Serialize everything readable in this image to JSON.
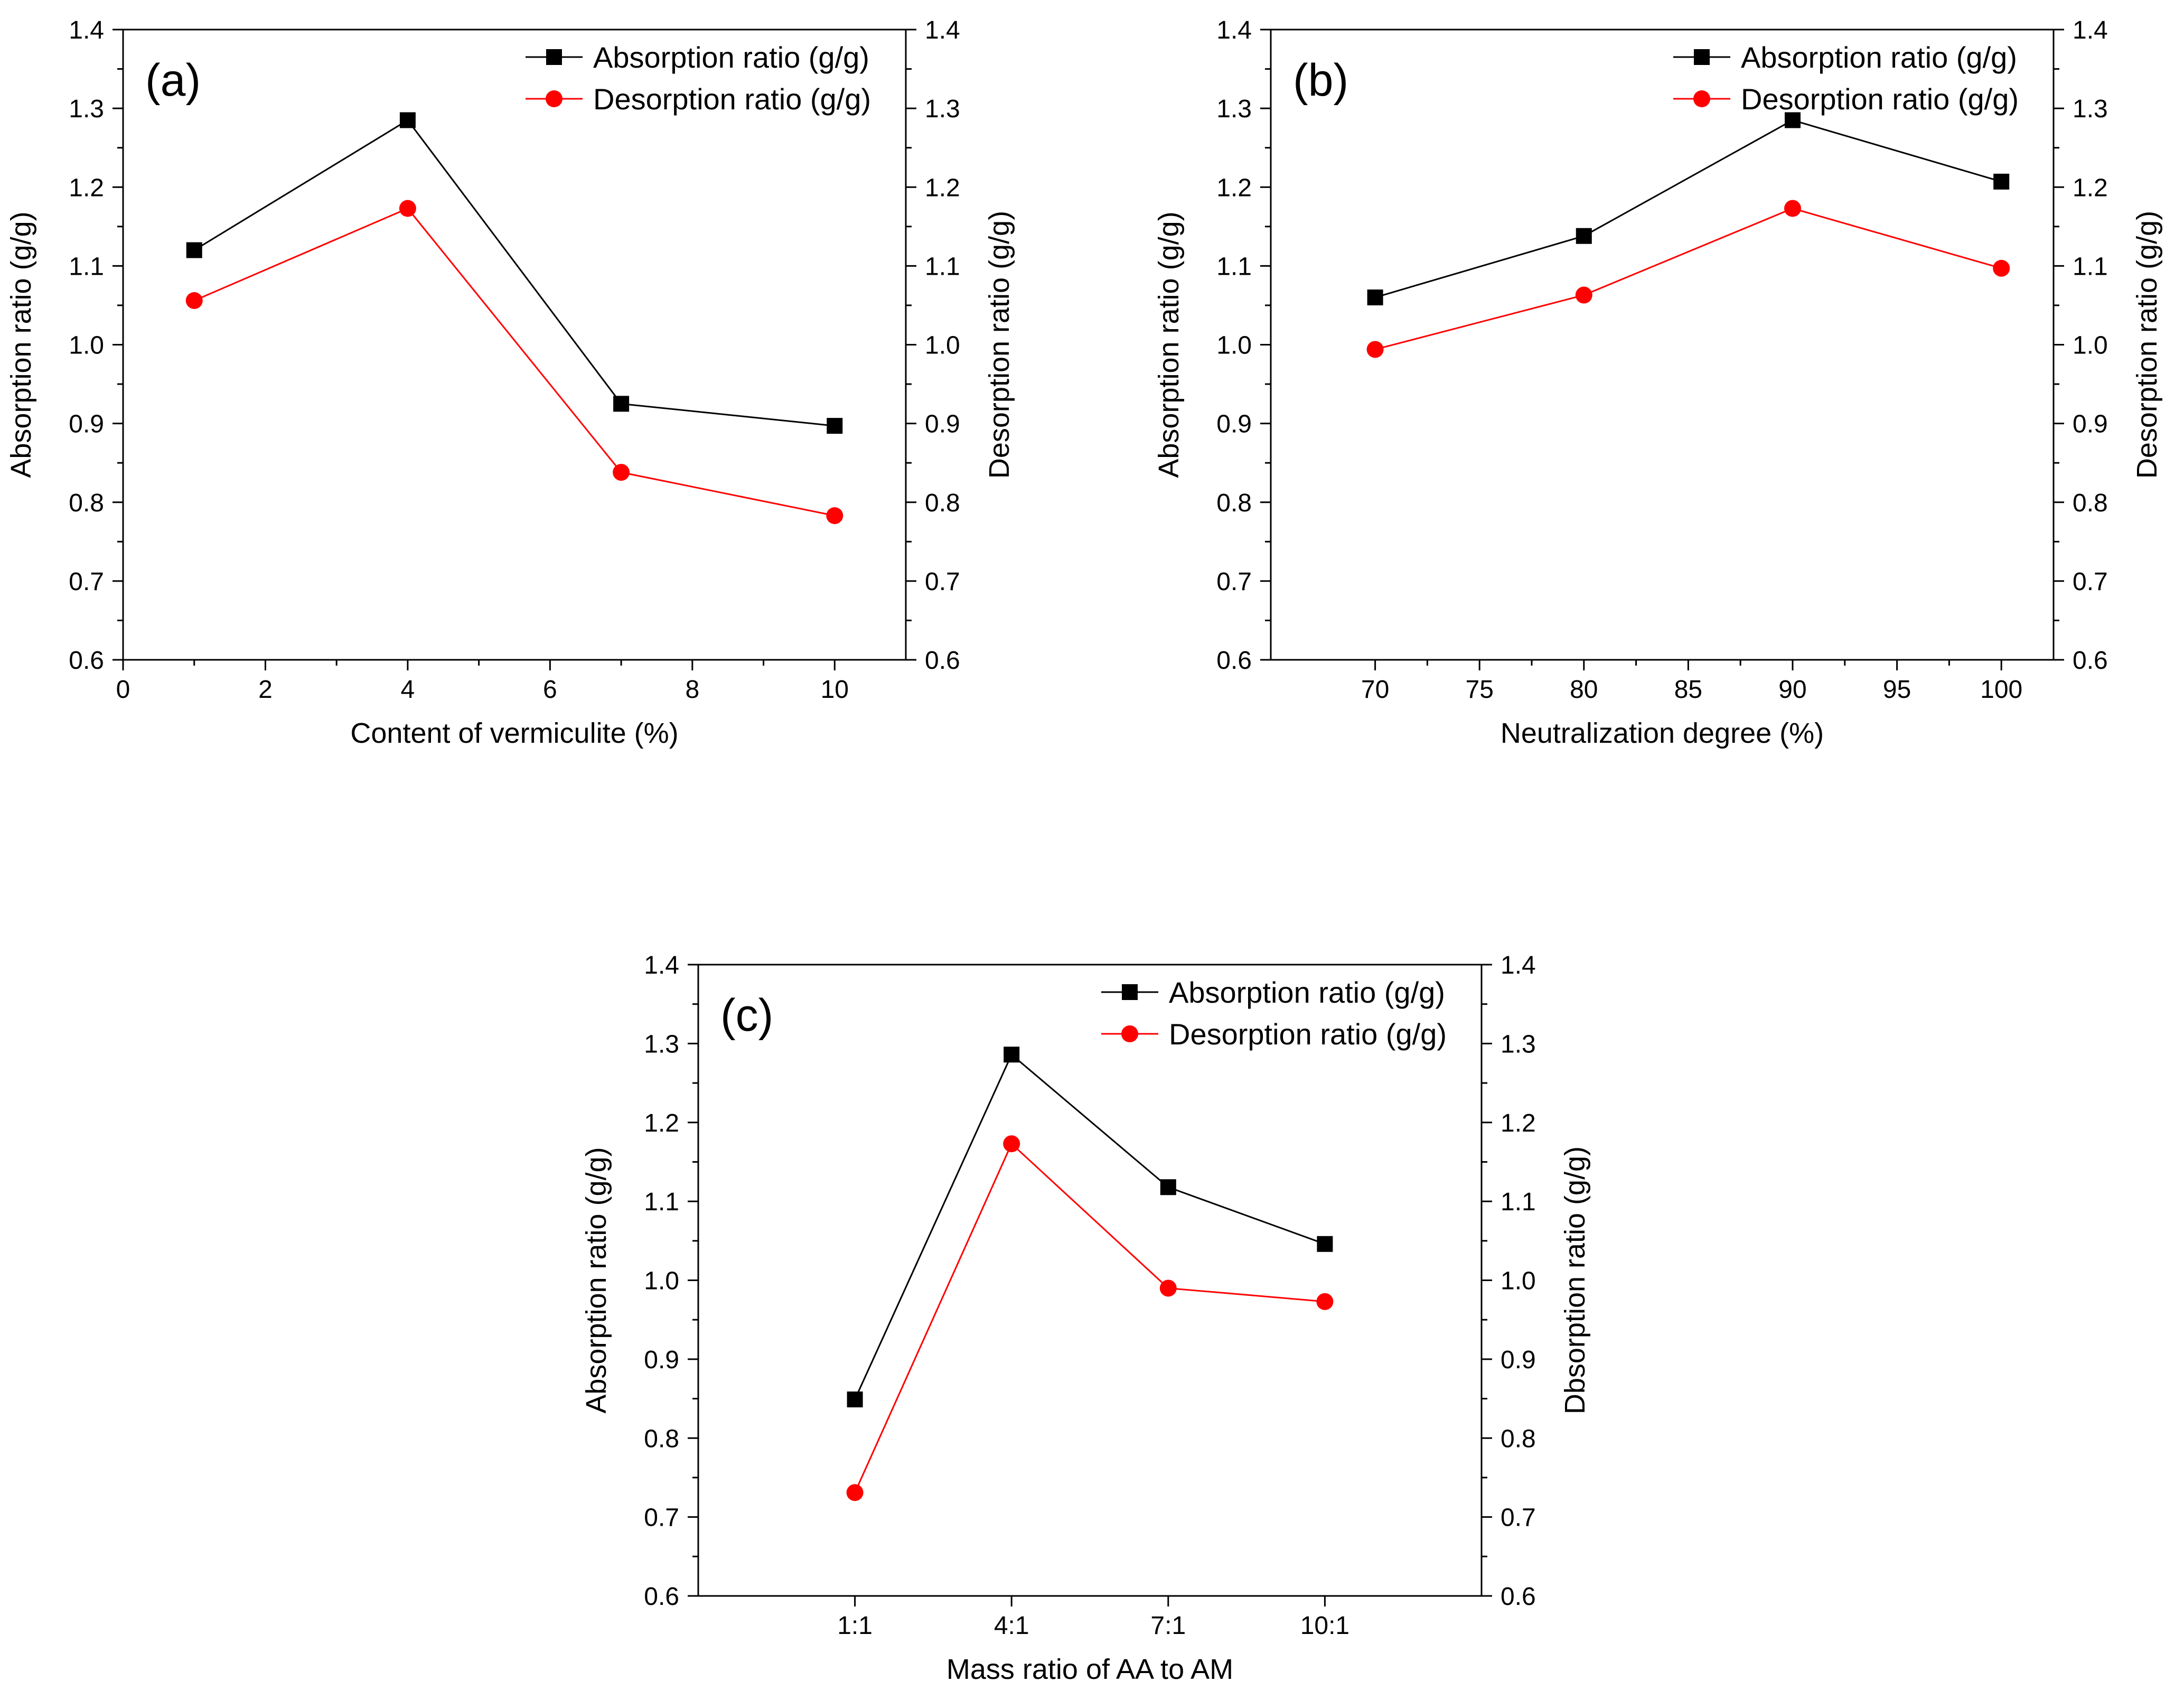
{
  "chart_data": [
    {
      "type": "line",
      "panel_label": "(a)",
      "xlabel": "Content of vermiculite (%)",
      "ylabel_left": "Absorption ratio (g/g)",
      "ylabel_right": "Desorption ratio (g/g)",
      "x_scale": "linear",
      "xlim": [
        0,
        11
      ],
      "xticks": [
        0,
        2,
        4,
        6,
        8,
        10
      ],
      "xtick_labels": [
        "0",
        "2",
        "4",
        "6",
        "8",
        "10"
      ],
      "ylim": [
        0.6,
        1.4
      ],
      "yticks": [
        0.6,
        0.7,
        0.8,
        0.9,
        1.0,
        1.1,
        1.2,
        1.3,
        1.4
      ],
      "ytick_labels": [
        "0.6",
        "0.7",
        "0.8",
        "0.9",
        "1.0",
        "1.1",
        "1.2",
        "1.3",
        "1.4"
      ],
      "x": [
        1,
        4,
        7,
        10
      ],
      "series": [
        {
          "name": "Absorption ratio (g/g)",
          "color": "#000000",
          "marker": "square",
          "values": [
            1.12,
            1.285,
            0.925,
            0.897
          ]
        },
        {
          "name": "Desorption ratio (g/g)",
          "color": "#ff0000",
          "marker": "circle",
          "values": [
            1.056,
            1.173,
            0.838,
            0.783
          ]
        }
      ],
      "legend": "top-right"
    },
    {
      "type": "line",
      "panel_label": "(b)",
      "xlabel": "Neutralization degree (%)",
      "ylabel_left": "Absorption ratio (g/g)",
      "ylabel_right": "Desorption ratio (g/g)",
      "x_scale": "linear",
      "xlim": [
        65,
        102.5
      ],
      "xticks": [
        70,
        75,
        80,
        85,
        90,
        95,
        100
      ],
      "xtick_labels": [
        "70",
        "75",
        "80",
        "85",
        "90",
        "95",
        "100"
      ],
      "ylim": [
        0.6,
        1.4
      ],
      "yticks": [
        0.6,
        0.7,
        0.8,
        0.9,
        1.0,
        1.1,
        1.2,
        1.3,
        1.4
      ],
      "ytick_labels": [
        "0.6",
        "0.7",
        "0.8",
        "0.9",
        "1.0",
        "1.1",
        "1.2",
        "1.3",
        "1.4"
      ],
      "x": [
        70,
        80,
        90,
        100
      ],
      "series": [
        {
          "name": "Absorption ratio (g/g)",
          "color": "#000000",
          "marker": "square",
          "values": [
            1.06,
            1.138,
            1.285,
            1.207
          ]
        },
        {
          "name": "Desorption ratio (g/g)",
          "color": "#ff0000",
          "marker": "circle",
          "values": [
            0.994,
            1.063,
            1.173,
            1.097
          ]
        }
      ],
      "legend": "top-right"
    },
    {
      "type": "line",
      "panel_label": "(c)",
      "xlabel": "Mass ratio of AA to AM",
      "ylabel_left": "Absorption ratio (g/g)",
      "ylabel_right": "Dbsorption ratio (g/g)",
      "x_scale": "category",
      "xlim": [
        0,
        5
      ],
      "xticks": [
        1,
        2,
        3,
        4
      ],
      "xtick_labels": [
        "1:1",
        "4:1",
        "7:1",
        "10:1"
      ],
      "ylim": [
        0.6,
        1.4
      ],
      "yticks": [
        0.6,
        0.7,
        0.8,
        0.9,
        1.0,
        1.1,
        1.2,
        1.3,
        1.4
      ],
      "ytick_labels": [
        "0.6",
        "0.7",
        "0.8",
        "0.9",
        "1.0",
        "1.1",
        "1.2",
        "1.3",
        "1.4"
      ],
      "x": [
        1,
        2,
        3,
        4
      ],
      "series": [
        {
          "name": "Absorption ratio (g/g)",
          "color": "#000000",
          "marker": "square",
          "values": [
            0.849,
            1.286,
            1.118,
            1.046
          ]
        },
        {
          "name": "Desorption ratio (g/g)",
          "color": "#ff0000",
          "marker": "circle",
          "values": [
            0.731,
            1.173,
            0.99,
            0.973
          ]
        }
      ],
      "legend": "top-right"
    }
  ]
}
